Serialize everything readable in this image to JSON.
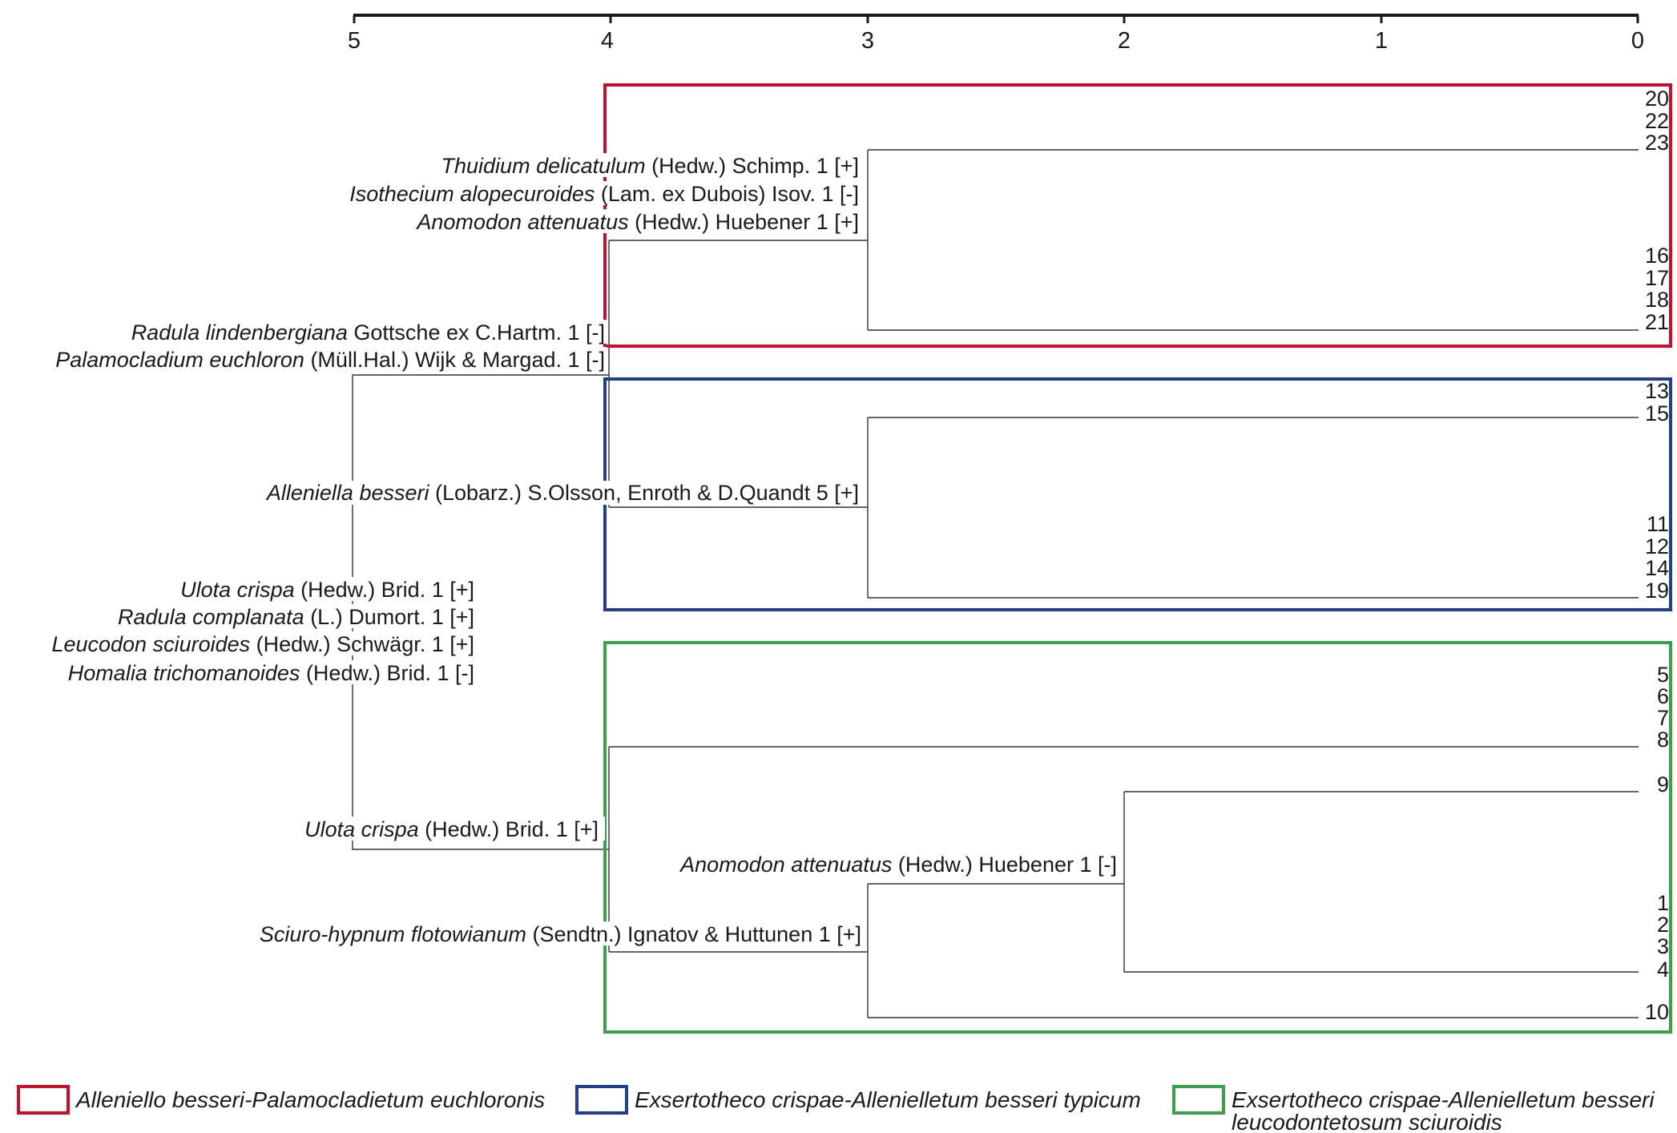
{
  "axis": {
    "ticks": [
      "5",
      "4",
      "3",
      "2",
      "1",
      "0"
    ]
  },
  "clusters": [
    {
      "name": "Alleniello besseri-Palamocladietum euchloronis",
      "color": "#c8102e"
    },
    {
      "name": "Exsertotheco crispae-Allenielletum besseri typicum",
      "color": "#1f3f8f"
    },
    {
      "name": "Exsertotheco crispae-Allenielletum besseri leucodontetosum sciuroidis",
      "color": "#3aa04a"
    }
  ],
  "leaves": [
    "20",
    "22",
    "23",
    "16",
    "17",
    "18",
    "21",
    "13",
    "15",
    "11",
    "12",
    "14",
    "19",
    "5",
    "6",
    "7",
    "8",
    "9",
    "1",
    "2",
    "3",
    "4",
    "10"
  ],
  "labels": [
    {
      "species": "Thuidium delicatulum",
      "author": " (Hedw.) Schimp. 1 [+]"
    },
    {
      "species": "Isothecium alopecuroides",
      "author": " (Lam. ex Dubois) Isov. 1 [-]"
    },
    {
      "species": "Anomodon attenuatus",
      "author": " (Hedw.) Huebener 1 [+]"
    },
    {
      "species": "Radula lindenbergiana",
      "author": " Gottsche ex C.Hartm. 1 [-]"
    },
    {
      "species": "Palamocladium euchloron",
      "author": " (Müll.Hal.) Wijk & Margad. 1 [-]"
    },
    {
      "species": "Alleniella besseri",
      "author": " (Lobarz.) S.Olsson, Enroth & D.Quandt 5 [+]"
    },
    {
      "species": "Ulota crispa",
      "author": " (Hedw.) Brid. 1 [+]"
    },
    {
      "species": "Radula complanata",
      "author": " (L.) Dumort. 1 [+]"
    },
    {
      "species": "Leucodon sciuroides",
      "author": " (Hedw.) Schwägr. 1 [+]"
    },
    {
      "species": "Homalia trichomanoides",
      "author": " (Hedw.) Brid. 1 [-]"
    },
    {
      "species": "Ulota crispa",
      "author": " (Hedw.) Brid. 1 [+]"
    },
    {
      "species": "Anomodon attenuatus",
      "author": " (Hedw.) Huebener 1 [-]"
    },
    {
      "species": "Sciuro-hypnum flotowianum",
      "author": " (Sendtn.) Ignatov & Huttunen 1 [+]"
    }
  ],
  "legend": [
    {
      "line1": "Alleniello besseri-Palamocladietum euchloronis",
      "line2": ""
    },
    {
      "line1": "Exsertotheco crispae-Allenielletum besseri typicum",
      "line2": ""
    },
    {
      "line1": "Exsertotheco crispae-Allenielletum besseri",
      "line2": "leucodontetosum sciuroidis"
    }
  ]
}
